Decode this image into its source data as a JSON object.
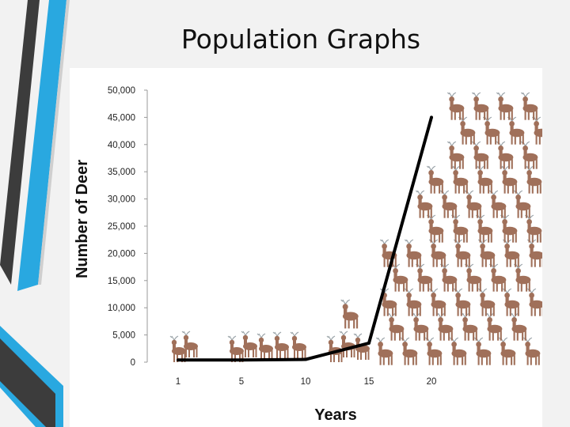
{
  "slide": {
    "title": "Population Graphs",
    "accent_colors": [
      "#29a8e0",
      "#3c3c3c",
      "#bfbfbf"
    ]
  },
  "chart_data": {
    "type": "line",
    "title": "",
    "xlabel": "Years",
    "ylabel": "Number of Deer",
    "x": [
      1,
      5,
      10,
      15,
      20
    ],
    "series": [
      {
        "values": [
          400,
          400,
          500,
          3500,
          45000
        ]
      }
    ],
    "x_ticks": [
      "1",
      "5",
      "10",
      "15",
      "20"
    ],
    "y_ticks": [
      "0",
      "5,000",
      "10,000",
      "15,000",
      "20,000",
      "25,000",
      "30,000",
      "35,000",
      "40,000",
      "45,000",
      "50,000"
    ],
    "ylim": [
      0,
      50000
    ],
    "grid": false,
    "line_color": "#000000",
    "decoration": "deer-icons",
    "deer_color": "#a0705a"
  }
}
